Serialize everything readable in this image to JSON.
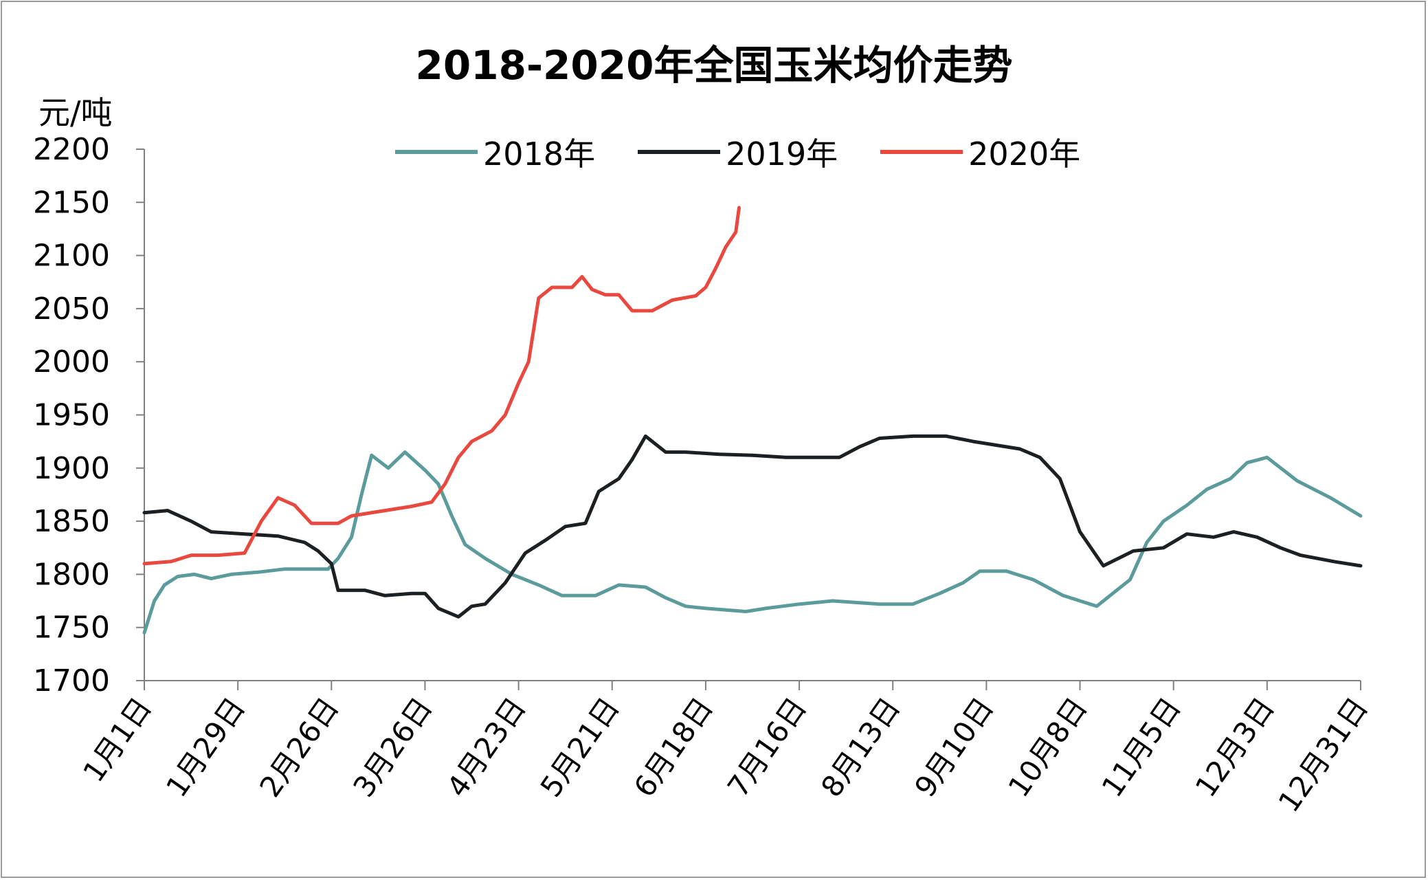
{
  "chart_data": {
    "type": "line",
    "title": "2018-2020年全国玉米均价走势",
    "ylabel": "元/吨",
    "xlabel": "",
    "ylim": [
      1700,
      2200
    ],
    "yticks": [
      "2200",
      "2150",
      "2100",
      "2050",
      "2000",
      "1950",
      "1900",
      "1850",
      "1800",
      "1750",
      "1700"
    ],
    "x_range_days": [
      0,
      364
    ],
    "xticks": [
      {
        "day": 0,
        "label": "1月1日"
      },
      {
        "day": 28,
        "label": "1月29日"
      },
      {
        "day": 56,
        "label": "2月26日"
      },
      {
        "day": 84,
        "label": "3月26日"
      },
      {
        "day": 112,
        "label": "4月23日"
      },
      {
        "day": 140,
        "label": "5月21日"
      },
      {
        "day": 168,
        "label": "6月18日"
      },
      {
        "day": 196,
        "label": "7月16日"
      },
      {
        "day": 224,
        "label": "8月13日"
      },
      {
        "day": 252,
        "label": "9月10日"
      },
      {
        "day": 280,
        "label": "10月8日"
      },
      {
        "day": 308,
        "label": "11月5日"
      },
      {
        "day": 336,
        "label": "12月3日"
      },
      {
        "day": 364,
        "label": "12月31日"
      }
    ],
    "grid": false,
    "legend_position": "top-center",
    "series": [
      {
        "name": "2018年",
        "color": "#5b9b9c",
        "points": [
          [
            0,
            1745
          ],
          [
            3,
            1775
          ],
          [
            6,
            1790
          ],
          [
            10,
            1798
          ],
          [
            15,
            1800
          ],
          [
            20,
            1796
          ],
          [
            26,
            1800
          ],
          [
            34,
            1802
          ],
          [
            42,
            1805
          ],
          [
            50,
            1805
          ],
          [
            55,
            1805
          ],
          [
            58,
            1815
          ],
          [
            62,
            1835
          ],
          [
            65,
            1875
          ],
          [
            68,
            1912
          ],
          [
            73,
            1900
          ],
          [
            78,
            1915
          ],
          [
            84,
            1898
          ],
          [
            88,
            1885
          ],
          [
            92,
            1855
          ],
          [
            96,
            1828
          ],
          [
            102,
            1815
          ],
          [
            110,
            1800
          ],
          [
            118,
            1790
          ],
          [
            125,
            1780
          ],
          [
            135,
            1780
          ],
          [
            142,
            1790
          ],
          [
            150,
            1788
          ],
          [
            156,
            1778
          ],
          [
            162,
            1770
          ],
          [
            168,
            1768
          ],
          [
            180,
            1765
          ],
          [
            186,
            1768
          ],
          [
            196,
            1772
          ],
          [
            206,
            1775
          ],
          [
            220,
            1772
          ],
          [
            230,
            1772
          ],
          [
            238,
            1782
          ],
          [
            245,
            1792
          ],
          [
            250,
            1803
          ],
          [
            258,
            1803
          ],
          [
            266,
            1795
          ],
          [
            275,
            1780
          ],
          [
            285,
            1770
          ],
          [
            295,
            1795
          ],
          [
            300,
            1830
          ],
          [
            305,
            1850
          ],
          [
            312,
            1865
          ],
          [
            318,
            1880
          ],
          [
            325,
            1890
          ],
          [
            330,
            1905
          ],
          [
            336,
            1910
          ],
          [
            345,
            1888
          ],
          [
            355,
            1872
          ],
          [
            364,
            1855
          ]
        ]
      },
      {
        "name": "2019年",
        "color": "#1c2022",
        "points": [
          [
            0,
            1858
          ],
          [
            7,
            1860
          ],
          [
            14,
            1850
          ],
          [
            20,
            1840
          ],
          [
            30,
            1838
          ],
          [
            40,
            1836
          ],
          [
            48,
            1830
          ],
          [
            52,
            1822
          ],
          [
            56,
            1810
          ],
          [
            58,
            1785
          ],
          [
            66,
            1785
          ],
          [
            72,
            1780
          ],
          [
            80,
            1782
          ],
          [
            84,
            1782
          ],
          [
            88,
            1768
          ],
          [
            94,
            1760
          ],
          [
            98,
            1770
          ],
          [
            102,
            1772
          ],
          [
            108,
            1792
          ],
          [
            114,
            1820
          ],
          [
            120,
            1832
          ],
          [
            126,
            1845
          ],
          [
            132,
            1848
          ],
          [
            136,
            1878
          ],
          [
            142,
            1890
          ],
          [
            146,
            1908
          ],
          [
            150,
            1930
          ],
          [
            156,
            1915
          ],
          [
            162,
            1915
          ],
          [
            172,
            1913
          ],
          [
            182,
            1912
          ],
          [
            192,
            1910
          ],
          [
            208,
            1910
          ],
          [
            214,
            1920
          ],
          [
            220,
            1928
          ],
          [
            230,
            1930
          ],
          [
            240,
            1930
          ],
          [
            248,
            1925
          ],
          [
            262,
            1918
          ],
          [
            268,
            1910
          ],
          [
            274,
            1890
          ],
          [
            280,
            1840
          ],
          [
            287,
            1808
          ],
          [
            296,
            1822
          ],
          [
            305,
            1825
          ],
          [
            312,
            1838
          ],
          [
            320,
            1835
          ],
          [
            326,
            1840
          ],
          [
            333,
            1835
          ],
          [
            340,
            1825
          ],
          [
            346,
            1818
          ],
          [
            356,
            1812
          ],
          [
            364,
            1808
          ]
        ]
      },
      {
        "name": "2020年",
        "color": "#e8483e",
        "points": [
          [
            0,
            1810
          ],
          [
            8,
            1812
          ],
          [
            14,
            1818
          ],
          [
            22,
            1818
          ],
          [
            30,
            1820
          ],
          [
            35,
            1850
          ],
          [
            40,
            1872
          ],
          [
            45,
            1865
          ],
          [
            50,
            1848
          ],
          [
            58,
            1848
          ],
          [
            62,
            1855
          ],
          [
            72,
            1860
          ],
          [
            80,
            1864
          ],
          [
            86,
            1868
          ],
          [
            90,
            1885
          ],
          [
            94,
            1910
          ],
          [
            98,
            1925
          ],
          [
            104,
            1935
          ],
          [
            108,
            1950
          ],
          [
            112,
            1980
          ],
          [
            115,
            2000
          ],
          [
            118,
            2060
          ],
          [
            122,
            2070
          ],
          [
            128,
            2070
          ],
          [
            131,
            2080
          ],
          [
            134,
            2068
          ],
          [
            138,
            2063
          ],
          [
            142,
            2063
          ],
          [
            146,
            2048
          ],
          [
            152,
            2048
          ],
          [
            158,
            2058
          ],
          [
            165,
            2062
          ],
          [
            168,
            2070
          ],
          [
            171,
            2088
          ],
          [
            174,
            2108
          ],
          [
            177,
            2122
          ],
          [
            178,
            2145
          ]
        ]
      }
    ]
  }
}
